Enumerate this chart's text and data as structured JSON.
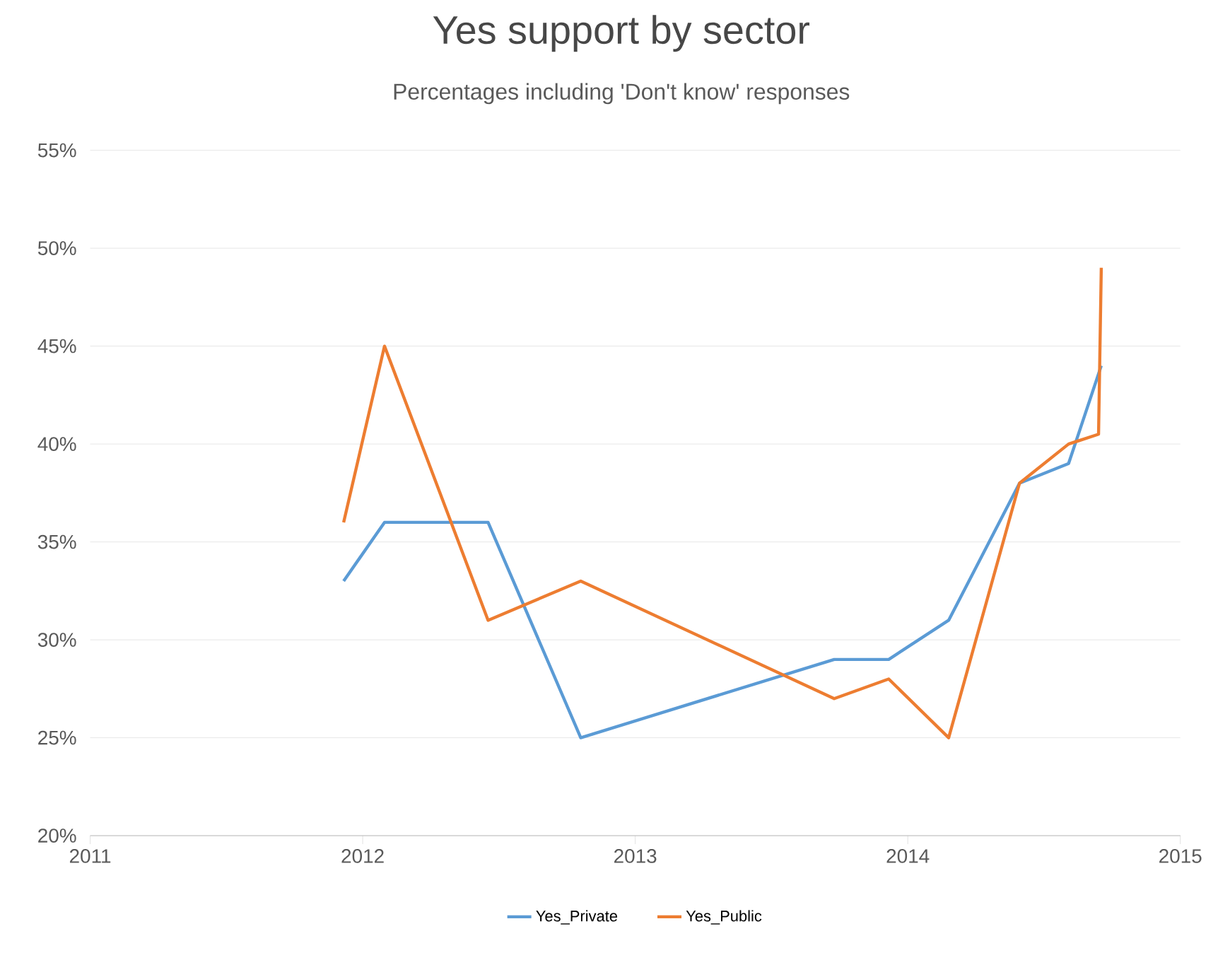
{
  "chart_data": {
    "type": "line",
    "title": "Yes support by sector",
    "subtitle": "Percentages including 'Don't know' responses",
    "xlim": [
      2011,
      2015
    ],
    "xticks": [
      2011,
      2012,
      2013,
      2014,
      2015
    ],
    "ylim": [
      20,
      55
    ],
    "yticks": [
      {
        "value": 20,
        "label": "20%"
      },
      {
        "value": 25,
        "label": "25%"
      },
      {
        "value": 30,
        "label": "30%"
      },
      {
        "value": 35,
        "label": "35%"
      },
      {
        "value": 40,
        "label": "40%"
      },
      {
        "value": 45,
        "label": "45%"
      },
      {
        "value": 50,
        "label": "50%"
      },
      {
        "value": 55,
        "label": "55%"
      }
    ],
    "grid": "y",
    "legend": "bottom",
    "line_style": "solid",
    "series": [
      {
        "name": "Yes_Private",
        "color": "#5b9bd5",
        "x": [
          2011.93,
          2012.08,
          2012.46,
          2012.8,
          2013.73,
          2013.93,
          2014.15,
          2014.41,
          2014.59,
          2014.71
        ],
        "values": [
          33,
          36,
          36,
          25,
          29,
          29,
          31,
          38,
          39,
          44
        ]
      },
      {
        "name": "Yes_Public",
        "color": "#ed7d31",
        "x": [
          2011.93,
          2012.08,
          2012.46,
          2012.8,
          2013.73,
          2013.93,
          2014.15,
          2014.41,
          2014.59,
          2014.7,
          2014.71
        ],
        "values": [
          36,
          45,
          31,
          33,
          27,
          28,
          25,
          38,
          40,
          40.5,
          49
        ]
      }
    ]
  }
}
